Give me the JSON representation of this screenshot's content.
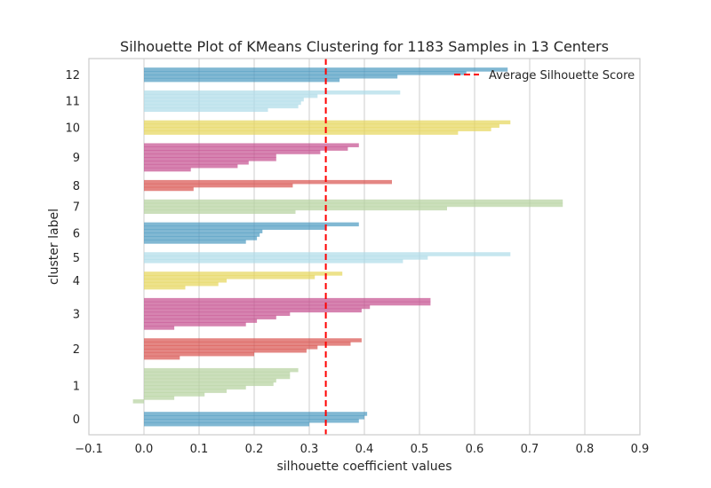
{
  "chart_data": {
    "type": "bar",
    "orientation": "horizontal",
    "title": "Silhouette Plot of KMeans Clustering for 1183 Samples in 13 Centers",
    "xlabel": "silhouette coefficient values",
    "ylabel": "cluster label",
    "xlim": [
      -0.1,
      0.9
    ],
    "xticks": [
      -0.1,
      0.0,
      0.1,
      0.2,
      0.3,
      0.4,
      0.5,
      0.6,
      0.7,
      0.8,
      0.9
    ],
    "xtick_labels": [
      "−0.1",
      "0.0",
      "0.1",
      "0.2",
      "0.3",
      "0.4",
      "0.5",
      "0.6",
      "0.7",
      "0.8",
      "0.9"
    ],
    "grid": true,
    "legend": {
      "position": "top-right",
      "entries": [
        "Average Silhouette Score"
      ]
    },
    "average_silhouette_score": 0.33,
    "clusters": [
      {
        "label": "0",
        "color": "#4c9ac0",
        "values": [
          0.405,
          0.4,
          0.39,
          0.3
        ]
      },
      {
        "label": "1",
        "color": "#b5d29e",
        "values": [
          0.28,
          0.265,
          0.265,
          0.24,
          0.235,
          0.185,
          0.15,
          0.11,
          0.055,
          -0.02
        ]
      },
      {
        "label": "2",
        "color": "#d9534f",
        "values": [
          0.395,
          0.375,
          0.315,
          0.295,
          0.2,
          0.065
        ]
      },
      {
        "label": "3",
        "color": "#c44e8e",
        "values": [
          0.52,
          0.52,
          0.41,
          0.395,
          0.265,
          0.24,
          0.205,
          0.185,
          0.055
        ]
      },
      {
        "label": "4",
        "color": "#e5d55a",
        "values": [
          0.36,
          0.31,
          0.15,
          0.135,
          0.075
        ]
      },
      {
        "label": "5",
        "color": "#aedce8",
        "values": [
          0.665,
          0.515,
          0.47
        ]
      },
      {
        "label": "6",
        "color": "#4c9ac0",
        "values": [
          0.39,
          0.33,
          0.215,
          0.21,
          0.205,
          0.185
        ]
      },
      {
        "label": "7",
        "color": "#b5d29e",
        "values": [
          0.76,
          0.76,
          0.55,
          0.275
        ]
      },
      {
        "label": "8",
        "color": "#d9534f",
        "values": [
          0.45,
          0.27,
          0.09
        ]
      },
      {
        "label": "9",
        "color": "#c44e8e",
        "values": [
          0.39,
          0.37,
          0.32,
          0.24,
          0.24,
          0.19,
          0.17,
          0.085
        ]
      },
      {
        "label": "10",
        "color": "#e5d55a",
        "values": [
          0.665,
          0.645,
          0.63,
          0.57
        ]
      },
      {
        "label": "11",
        "color": "#aedce8",
        "values": [
          0.465,
          0.315,
          0.29,
          0.285,
          0.28,
          0.225
        ]
      },
      {
        "label": "12",
        "color": "#4c9ac0",
        "values": [
          0.66,
          0.585,
          0.46,
          0.355
        ]
      }
    ]
  },
  "colors": {
    "average_line": "#ff0000",
    "grid": "#cccccc",
    "axes_edge": "#cccccc"
  }
}
